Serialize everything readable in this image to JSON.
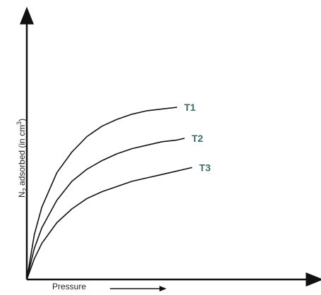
{
  "chart_data": {
    "type": "line",
    "title": "",
    "xlabel": "Pressure",
    "ylabel_parts": {
      "main": "N",
      "sub": "2",
      "rest": " adsorbed (in cm",
      "sup": "3",
      "end": ")"
    },
    "axes": {
      "x_ticks": false,
      "y_ticks": false,
      "grid": false
    },
    "xlim": [
      0,
      1
    ],
    "ylim": [
      0,
      1
    ],
    "series": [
      {
        "name": "T1",
        "x": [
          0,
          0.05,
          0.1,
          0.2,
          0.3,
          0.4,
          0.5,
          0.6,
          0.7,
          0.8,
          0.9,
          1.0
        ],
        "y": [
          0,
          0.26,
          0.42,
          0.62,
          0.74,
          0.83,
          0.89,
          0.93,
          0.96,
          0.98,
          0.99,
          1.0
        ]
      },
      {
        "name": "T2",
        "x": [
          0,
          0.05,
          0.1,
          0.2,
          0.3,
          0.4,
          0.5,
          0.6,
          0.7,
          0.8,
          0.9,
          1.0,
          1.05
        ],
        "y": [
          0,
          0.18,
          0.3,
          0.46,
          0.57,
          0.64,
          0.69,
          0.73,
          0.76,
          0.78,
          0.8,
          0.81,
          0.82
        ]
      },
      {
        "name": "T3",
        "x": [
          0,
          0.05,
          0.1,
          0.2,
          0.3,
          0.4,
          0.5,
          0.6,
          0.7,
          0.8,
          0.9,
          1.0,
          1.1
        ],
        "y": [
          0,
          0.12,
          0.21,
          0.33,
          0.41,
          0.47,
          0.51,
          0.54,
          0.57,
          0.59,
          0.61,
          0.63,
          0.65
        ]
      }
    ]
  }
}
